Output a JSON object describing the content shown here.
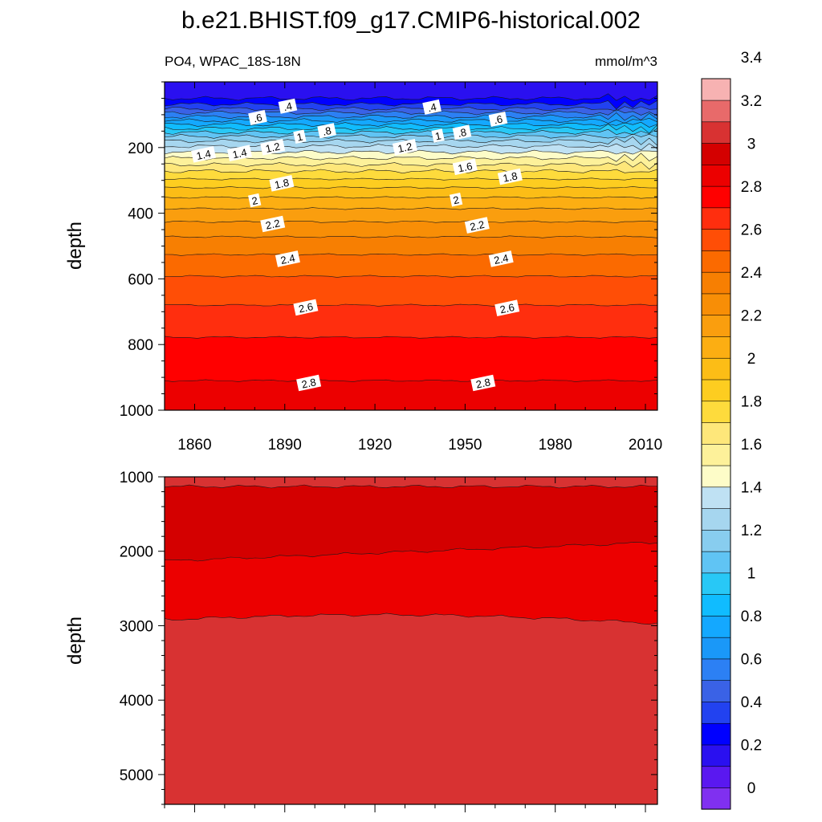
{
  "title": "b.e21.BHIST.f09_g17.CMIP6-historical.002",
  "left_subtitle": "PO4, WPAC_18S-18N",
  "right_subtitle": "mmol/m^3",
  "chart_data": [
    {
      "type": "contour",
      "panel": "upper",
      "ylabel": "depth",
      "xlim": [
        1850,
        2014
      ],
      "ylim": [
        1000,
        0
      ],
      "x_ticks": [
        1860,
        1890,
        1920,
        1950,
        1980,
        2010
      ],
      "y_ticks": [
        200,
        400,
        600,
        800,
        1000
      ],
      "y_tick_labels": [
        "200",
        "400",
        "600",
        "800",
        "1000"
      ],
      "contour_depths": [
        {
          "level": 0.2,
          "depth": 50
        },
        {
          "level": 0.3,
          "depth": 68
        },
        {
          "level": 0.4,
          "depth": 82
        },
        {
          "level": 0.5,
          "depth": 94
        },
        {
          "level": 0.6,
          "depth": 106
        },
        {
          "level": 0.7,
          "depth": 118
        },
        {
          "level": 0.8,
          "depth": 130
        },
        {
          "level": 0.9,
          "depth": 142
        },
        {
          "level": 1.0,
          "depth": 154
        },
        {
          "level": 1.1,
          "depth": 166
        },
        {
          "level": 1.2,
          "depth": 180
        },
        {
          "level": 1.3,
          "depth": 196
        },
        {
          "level": 1.4,
          "depth": 214
        },
        {
          "level": 1.5,
          "depth": 232
        },
        {
          "level": 1.6,
          "depth": 252
        },
        {
          "level": 1.7,
          "depth": 272
        },
        {
          "level": 1.8,
          "depth": 296
        },
        {
          "level": 1.9,
          "depth": 322
        },
        {
          "level": 2.0,
          "depth": 352
        },
        {
          "level": 2.1,
          "depth": 386
        },
        {
          "level": 2.2,
          "depth": 426
        },
        {
          "level": 2.3,
          "depth": 472
        },
        {
          "level": 2.4,
          "depth": 526
        },
        {
          "level": 2.5,
          "depth": 592
        },
        {
          "level": 2.6,
          "depth": 680
        },
        {
          "level": 2.7,
          "depth": 778
        },
        {
          "level": 2.8,
          "depth": 910
        }
      ],
      "labels": [
        {
          "text": ".4",
          "x": 1891,
          "depth": 75
        },
        {
          "text": ".4",
          "x": 1939,
          "depth": 78
        },
        {
          "text": ".6",
          "x": 1881,
          "depth": 110
        },
        {
          "text": ".6",
          "x": 1961,
          "depth": 115
        },
        {
          "text": ".8",
          "x": 1904,
          "depth": 150
        },
        {
          "text": ".8",
          "x": 1949,
          "depth": 155
        },
        {
          "text": "1",
          "x": 1895,
          "depth": 168
        },
        {
          "text": "1",
          "x": 1941,
          "depth": 165
        },
        {
          "text": "1.2",
          "x": 1886,
          "depth": 200
        },
        {
          "text": "1.2",
          "x": 1930,
          "depth": 200
        },
        {
          "text": "1.4",
          "x": 1863,
          "depth": 222
        },
        {
          "text": "1.4",
          "x": 1875,
          "depth": 218
        },
        {
          "text": "1.6",
          "x": 1950,
          "depth": 260
        },
        {
          "text": "1.8",
          "x": 1889,
          "depth": 310
        },
        {
          "text": "1.8",
          "x": 1965,
          "depth": 290
        },
        {
          "text": "2",
          "x": 1880,
          "depth": 362
        },
        {
          "text": "2",
          "x": 1947,
          "depth": 360
        },
        {
          "text": "2.2",
          "x": 1886,
          "depth": 434
        },
        {
          "text": "2.2",
          "x": 1954,
          "depth": 438
        },
        {
          "text": "2.4",
          "x": 1891,
          "depth": 540
        },
        {
          "text": "2.4",
          "x": 1962,
          "depth": 540
        },
        {
          "text": "2.6",
          "x": 1897,
          "depth": 688
        },
        {
          "text": "2.6",
          "x": 1964,
          "depth": 690
        },
        {
          "text": "2.8",
          "x": 1898,
          "depth": 918
        },
        {
          "text": "2.8",
          "x": 1956,
          "depth": 918
        }
      ]
    },
    {
      "type": "contour",
      "panel": "lower",
      "ylabel": "depth",
      "xlim": [
        1850,
        2014
      ],
      "ylim": [
        5400,
        1000
      ],
      "y_ticks": [
        1000,
        2000,
        3000,
        4000,
        5000
      ],
      "y_tick_labels": [
        "1000",
        "2000",
        "3000",
        "4000",
        "5000"
      ],
      "contour_depths": [
        {
          "level": 2.9,
          "depth": 1130
        },
        {
          "level": 3.0,
          "depth": 2130,
          "depth_end": 1880
        },
        {
          "level": 3.0,
          "depth": 2920,
          "depth_end": 2970
        }
      ]
    }
  ],
  "colorbar": {
    "tick_labels": [
      "0",
      "0.2",
      "0.4",
      "0.6",
      "0.8",
      "1",
      "1.2",
      "1.4",
      "1.6",
      "1.8",
      "2",
      "2.2",
      "2.4",
      "2.6",
      "2.8",
      "3",
      "3.2",
      "3.4"
    ],
    "colors": [
      "#8030f0",
      "#5a18f0",
      "#2a10f0",
      "#0000ff",
      "#2242f0",
      "#3a62e6",
      "#2c80f4",
      "#1a98f8",
      "#14a8ff",
      "#10bcff",
      "#28c8f6",
      "#60c4f4",
      "#88cdef",
      "#a6d6ef",
      "#bfe1f3",
      "#fdfcc8",
      "#fdf19a",
      "#fee77a",
      "#fedb3c",
      "#fdcd20",
      "#fcbd16",
      "#fcae12",
      "#fa9e0e",
      "#f88e06",
      "#f77f02",
      "#fb6a00",
      "#ff4e06",
      "#ff2e0e",
      "#ff0000",
      "#ec0000",
      "#d40000",
      "#d83232",
      "#e86a6a",
      "#f7b2b2"
    ]
  }
}
